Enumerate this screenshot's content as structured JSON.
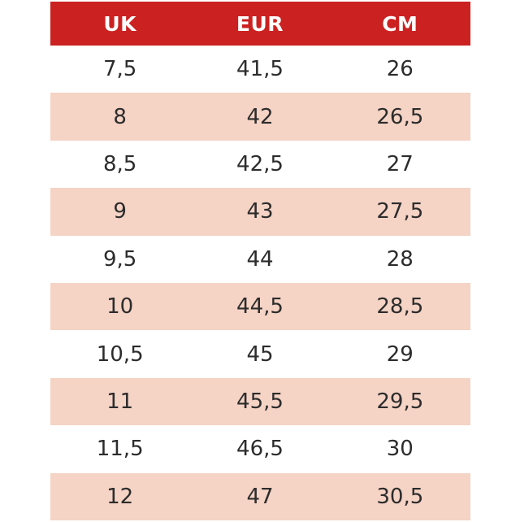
{
  "chart_data": {
    "type": "table",
    "columns": [
      "UK",
      "EUR",
      "CM"
    ],
    "rows": [
      [
        "7,5",
        "41,5",
        "26"
      ],
      [
        "8",
        "42",
        "26,5"
      ],
      [
        "8,5",
        "42,5",
        "27"
      ],
      [
        "9",
        "43",
        "27,5"
      ],
      [
        "9,5",
        "44",
        "28"
      ],
      [
        "10",
        "44,5",
        "28,5"
      ],
      [
        "10,5",
        "45",
        "29"
      ],
      [
        "11",
        "45,5",
        "29,5"
      ],
      [
        "11,5",
        "46,5",
        "30"
      ],
      [
        "12",
        "47",
        "30,5"
      ]
    ]
  },
  "colors": {
    "header_bg": "#CB2121",
    "header_text": "#FFFFFF",
    "row_bg": "#FFFFFF",
    "row_alt_bg": "#F5D3C5",
    "body_text": "#2C2C2C"
  }
}
